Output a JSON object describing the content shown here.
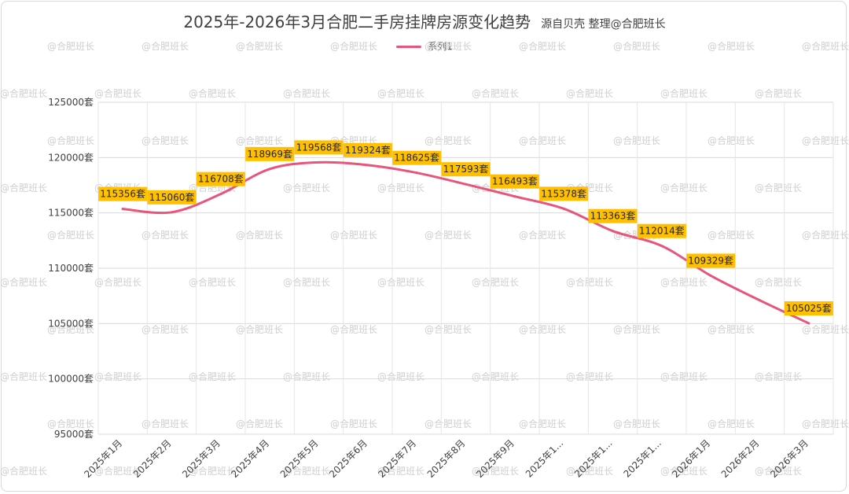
{
  "chart_data": {
    "type": "line",
    "title": "2025年-2026年3月合肥二手房挂牌房源变化趋势",
    "subtitle": "源自贝壳 整理@合肥班长",
    "xlabel": "",
    "ylabel": "",
    "ylim": [
      95000,
      125000
    ],
    "yticks": [
      {
        "value": 95000,
        "label": "95000套"
      },
      {
        "value": 100000,
        "label": "100000套"
      },
      {
        "value": 105000,
        "label": "105000套"
      },
      {
        "value": 110000,
        "label": "110000套"
      },
      {
        "value": 115000,
        "label": "115000套"
      },
      {
        "value": 120000,
        "label": "120000套"
      },
      {
        "value": 125000,
        "label": "125000套"
      }
    ],
    "categories": [
      "2025年1月",
      "2025年2月",
      "2025年3月",
      "2025年4月",
      "2025年5月",
      "2025年6月",
      "2025年7月",
      "2025年8月",
      "2025年9月",
      "2025年1...",
      "2025年1...",
      "2025年1...",
      "2026年1月",
      "2026年2月",
      "2026年3月"
    ],
    "series": [
      {
        "name": "系列1",
        "color": "#E8557A",
        "values": [
          115356,
          115060,
          116708,
          118969,
          119568,
          119324,
          118625,
          117593,
          116493,
          115378,
          113363,
          112014,
          109329,
          107100,
          105025
        ]
      }
    ],
    "data_labels": [
      "115356套",
      "115060套",
      "116708套",
      "118969套",
      "119568套",
      "119324套",
      "118625套",
      "117593套",
      "116493套",
      "115378套",
      "113363套",
      "112014套",
      "109329套",
      "",
      "105025套"
    ],
    "label_color": "#FFC000",
    "legend_position": "top",
    "grid": true,
    "watermark": "@合肥班长"
  }
}
